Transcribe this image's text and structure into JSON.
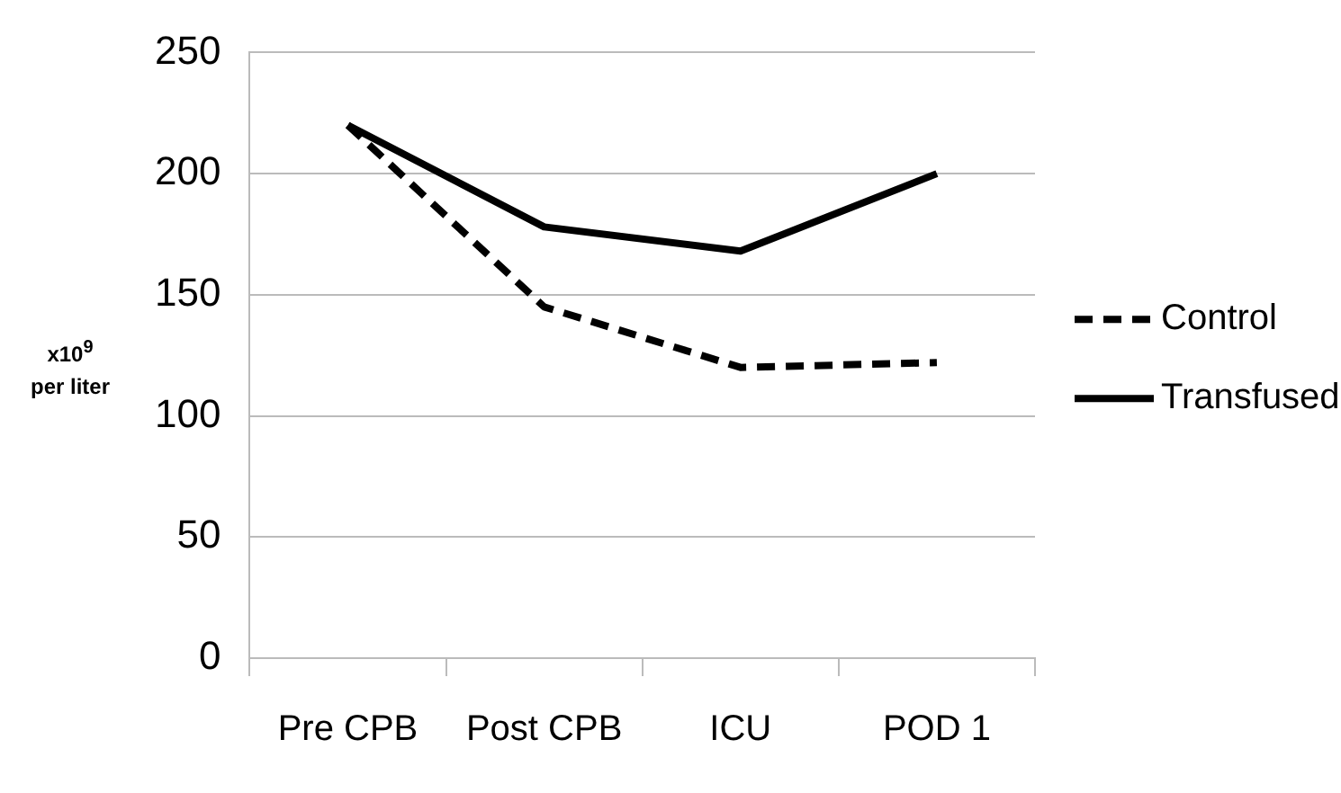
{
  "chart_data": {
    "type": "line",
    "ylabel": "x10$^{9}$ per liter",
    "categories": [
      "Pre CPB",
      "Post CPB",
      "ICU",
      "POD 1"
    ],
    "series": [
      {
        "name": "Control",
        "color": "#000000",
        "values": [
          220,
          145,
          120,
          122
        ],
        "line_style": "dashed"
      },
      {
        "name": "Transfused",
        "color": "#000000",
        "values": [
          220,
          178,
          168,
          200
        ],
        "line_style": "solid"
      }
    ],
    "ylim": [
      0,
      250
    ],
    "yticks": [
      0,
      50,
      100,
      150,
      200,
      250
    ],
    "grid": "y",
    "legend": "right",
    "marker": "none"
  }
}
